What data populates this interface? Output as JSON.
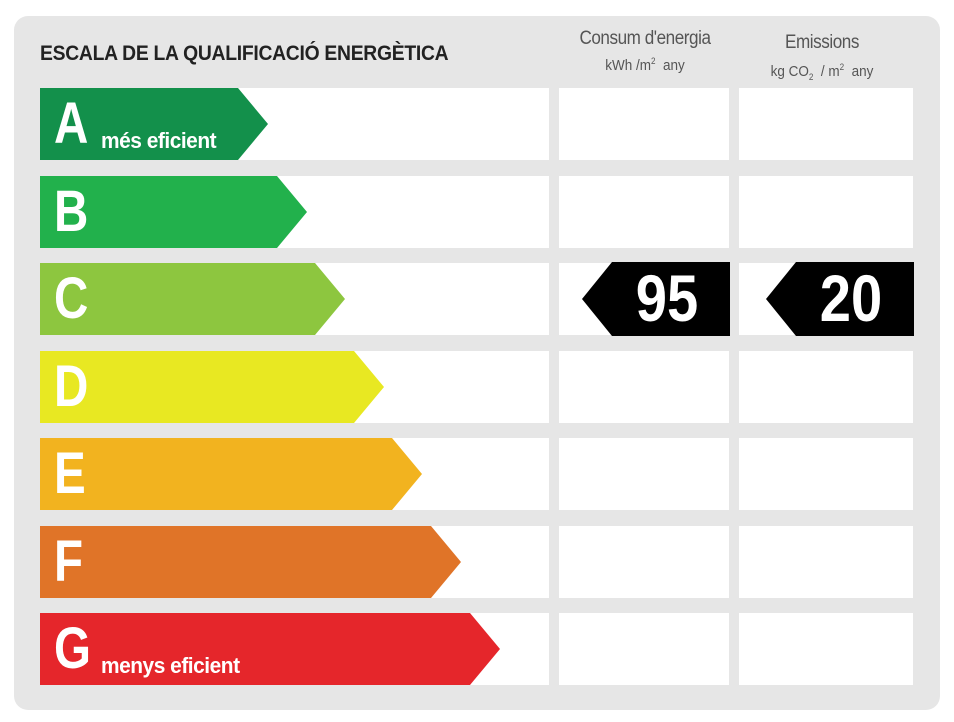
{
  "title": "ESCALA DE LA QUALIFICACIÓ ENERGÈTICA",
  "columns": {
    "consumption": {
      "title": "Consum d'energia",
      "unit_prefix": "kWh /m",
      "unit_sup": "2",
      "unit_suffix": "any"
    },
    "emissions": {
      "title": "Emissions",
      "unit_prefix": "kg CO",
      "unit_sub": "2",
      "unit_mid": "/ m",
      "unit_sup": "2",
      "unit_suffix": "any"
    }
  },
  "ratings": [
    {
      "letter": "A",
      "description": "més eficient",
      "color": "#13904b"
    },
    {
      "letter": "B",
      "description": "",
      "color": "#22b14c"
    },
    {
      "letter": "C",
      "description": "",
      "color": "#8dc63f"
    },
    {
      "letter": "D",
      "description": "",
      "color": "#e8e822"
    },
    {
      "letter": "E",
      "description": "",
      "color": "#f2b31f"
    },
    {
      "letter": "F",
      "description": "",
      "color": "#e07428"
    },
    {
      "letter": "G",
      "description": "menys eficient",
      "color": "#e5262b"
    }
  ],
  "current": {
    "rating": "C",
    "consumption": "95",
    "emissions": "20",
    "marker_color": "#000000"
  }
}
